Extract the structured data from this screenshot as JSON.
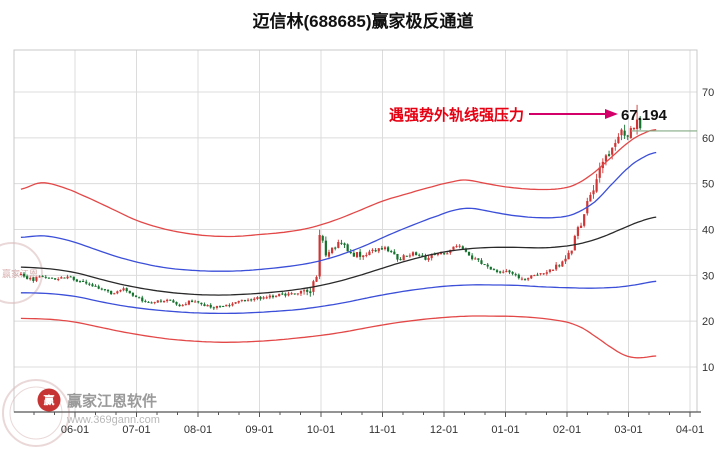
{
  "title": "迈信林(688685)赢家极反通道",
  "annotation": {
    "pressure_text": "遇强势外轨线强压力",
    "price_label": "67.194",
    "text_color": "#e60012",
    "arrow_color": "#d4006a"
  },
  "watermark": {
    "brand": "赢家江恩软件",
    "url": "www.369gann.com",
    "logo_char": "赢",
    "seal_text": "赢家江恩"
  },
  "chart_data": {
    "type": "candlestick",
    "title": "迈信林(688685)赢家极反通道",
    "x_labels": [
      "06-01",
      "07-01",
      "08-01",
      "09-01",
      "10-01",
      "11-01",
      "12-01",
      "01-01",
      "02-01",
      "03-01",
      "04-01"
    ],
    "y_ticks": [
      10,
      20,
      30,
      40,
      50,
      60,
      70
    ],
    "ylim": [
      0,
      79
    ],
    "x_range_months": [
      0.12,
      10.19
    ],
    "grid": true,
    "legend": "none",
    "colors": {
      "grid": "#dcdcdc",
      "border": "#c9c9c9",
      "axis": "#555555"
    },
    "price_line": {
      "value": 61.5,
      "color": "#85ab85"
    },
    "peak": {
      "t": 10.12,
      "high": 67.194
    },
    "candles": {
      "count": 200,
      "seed": 11,
      "up_color": "#cf3535",
      "down_color": "#15722e",
      "close_keyframes": [
        [
          0.12,
          30.2
        ],
        [
          0.3,
          29.0
        ],
        [
          0.5,
          30.1
        ],
        [
          0.7,
          29.0
        ],
        [
          0.9,
          29.9
        ],
        [
          1.1,
          28.5
        ],
        [
          1.35,
          27.3
        ],
        [
          1.6,
          26.2
        ],
        [
          1.8,
          26.9
        ],
        [
          2.0,
          25.1
        ],
        [
          2.2,
          23.8
        ],
        [
          2.45,
          24.7
        ],
        [
          2.7,
          23.5
        ],
        [
          2.9,
          24.4
        ],
        [
          3.1,
          23.3
        ],
        [
          3.35,
          22.9
        ],
        [
          3.6,
          23.9
        ],
        [
          3.8,
          24.7
        ],
        [
          4.0,
          25.1
        ],
        [
          4.3,
          25.7
        ],
        [
          4.6,
          25.9
        ],
        [
          4.85,
          27.0
        ],
        [
          4.93,
          30.5
        ],
        [
          4.99,
          41.0
        ],
        [
          5.06,
          35.0
        ],
        [
          5.2,
          36.2
        ],
        [
          5.35,
          37.0
        ],
        [
          5.5,
          34.8
        ],
        [
          5.7,
          34.1
        ],
        [
          5.9,
          35.6
        ],
        [
          6.05,
          36.1
        ],
        [
          6.25,
          33.6
        ],
        [
          6.5,
          34.7
        ],
        [
          6.7,
          33.8
        ],
        [
          6.9,
          34.6
        ],
        [
          7.05,
          34.9
        ],
        [
          7.25,
          36.8
        ],
        [
          7.45,
          33.9
        ],
        [
          7.65,
          32.3
        ],
        [
          7.85,
          31.1
        ],
        [
          8.05,
          30.5
        ],
        [
          8.3,
          29.2
        ],
        [
          8.55,
          30.3
        ],
        [
          8.8,
          31.7
        ],
        [
          9.0,
          33.6
        ],
        [
          9.12,
          37.5
        ],
        [
          9.25,
          42.5
        ],
        [
          9.38,
          47.5
        ],
        [
          9.5,
          52.0
        ],
        [
          9.62,
          55.5
        ],
        [
          9.72,
          58.0
        ],
        [
          9.82,
          60.5
        ],
        [
          9.9,
          62.5
        ],
        [
          9.96,
          59.5
        ],
        [
          10.02,
          63.0
        ],
        [
          10.07,
          61.0
        ],
        [
          10.12,
          64.5
        ],
        [
          10.16,
          62.5
        ],
        [
          10.19,
          62.0
        ]
      ],
      "volatility_keyframes": [
        [
          0.12,
          0.45
        ],
        [
          4.6,
          0.4
        ],
        [
          4.9,
          1.4
        ],
        [
          5.2,
          0.9
        ],
        [
          6.0,
          0.55
        ],
        [
          8.6,
          0.5
        ],
        [
          9.1,
          1.0
        ],
        [
          9.5,
          1.3
        ],
        [
          10.19,
          1.5
        ]
      ]
    },
    "channel_lines": [
      {
        "name": "outer-upper-red",
        "color": "#e34848",
        "width": 1.3,
        "points": [
          [
            0.12,
            48.8
          ],
          [
            0.45,
            50.2
          ],
          [
            0.8,
            49.2
          ],
          [
            1.2,
            47.0
          ],
          [
            1.6,
            44.5
          ],
          [
            2.0,
            42.0
          ],
          [
            2.4,
            40.3
          ],
          [
            2.8,
            39.2
          ],
          [
            3.2,
            38.6
          ],
          [
            3.6,
            38.5
          ],
          [
            4.0,
            38.9
          ],
          [
            4.4,
            39.4
          ],
          [
            4.8,
            40.3
          ],
          [
            5.2,
            41.9
          ],
          [
            5.6,
            44.0
          ],
          [
            6.0,
            46.2
          ],
          [
            6.4,
            47.8
          ],
          [
            6.8,
            49.3
          ],
          [
            7.1,
            50.3
          ],
          [
            7.35,
            50.8
          ],
          [
            7.7,
            50.0
          ],
          [
            8.0,
            49.3
          ],
          [
            8.4,
            48.8
          ],
          [
            8.8,
            48.8
          ],
          [
            9.1,
            49.6
          ],
          [
            9.4,
            52.0
          ],
          [
            9.7,
            55.5
          ],
          [
            10.0,
            59.0
          ],
          [
            10.25,
            61.0
          ],
          [
            10.45,
            61.8
          ]
        ]
      },
      {
        "name": "inner-upper-blue",
        "color": "#3b4fd8",
        "width": 1.3,
        "points": [
          [
            0.12,
            38.3
          ],
          [
            0.5,
            38.6
          ],
          [
            0.9,
            37.6
          ],
          [
            1.3,
            35.8
          ],
          [
            1.7,
            34.0
          ],
          [
            2.1,
            32.6
          ],
          [
            2.5,
            31.6
          ],
          [
            2.9,
            31.1
          ],
          [
            3.3,
            30.9
          ],
          [
            3.7,
            31.0
          ],
          [
            4.1,
            31.4
          ],
          [
            4.5,
            32.0
          ],
          [
            4.9,
            32.9
          ],
          [
            5.3,
            34.4
          ],
          [
            5.7,
            36.4
          ],
          [
            6.1,
            38.8
          ],
          [
            6.5,
            41.0
          ],
          [
            6.9,
            43.0
          ],
          [
            7.2,
            44.3
          ],
          [
            7.45,
            44.6
          ],
          [
            7.8,
            43.8
          ],
          [
            8.1,
            43.1
          ],
          [
            8.5,
            42.6
          ],
          [
            8.9,
            42.7
          ],
          [
            9.15,
            43.6
          ],
          [
            9.45,
            46.0
          ],
          [
            9.7,
            49.5
          ],
          [
            10.0,
            53.5
          ],
          [
            10.25,
            55.8
          ],
          [
            10.45,
            56.8
          ]
        ]
      },
      {
        "name": "middle-black",
        "color": "#2a2a2a",
        "width": 1.3,
        "points": [
          [
            0.12,
            31.8
          ],
          [
            0.6,
            31.4
          ],
          [
            1.0,
            30.6
          ],
          [
            1.4,
            29.2
          ],
          [
            1.8,
            27.9
          ],
          [
            2.2,
            26.9
          ],
          [
            2.6,
            26.2
          ],
          [
            3.0,
            25.8
          ],
          [
            3.4,
            25.7
          ],
          [
            3.8,
            25.9
          ],
          [
            4.2,
            26.3
          ],
          [
            4.6,
            26.9
          ],
          [
            5.0,
            27.8
          ],
          [
            5.4,
            29.1
          ],
          [
            5.8,
            30.7
          ],
          [
            6.2,
            32.4
          ],
          [
            6.6,
            33.9
          ],
          [
            7.0,
            35.1
          ],
          [
            7.4,
            35.8
          ],
          [
            7.8,
            36.1
          ],
          [
            8.2,
            36.1
          ],
          [
            8.6,
            36.0
          ],
          [
            9.0,
            36.4
          ],
          [
            9.3,
            37.2
          ],
          [
            9.6,
            38.5
          ],
          [
            9.9,
            40.2
          ],
          [
            10.2,
            41.8
          ],
          [
            10.45,
            42.7
          ]
        ]
      },
      {
        "name": "inner-lower-blue",
        "color": "#3b4fd8",
        "width": 1.3,
        "points": [
          [
            0.12,
            26.2
          ],
          [
            0.6,
            26.0
          ],
          [
            1.0,
            25.4
          ],
          [
            1.4,
            24.3
          ],
          [
            1.8,
            23.3
          ],
          [
            2.2,
            22.6
          ],
          [
            2.6,
            22.1
          ],
          [
            3.0,
            21.8
          ],
          [
            3.4,
            21.7
          ],
          [
            3.8,
            21.8
          ],
          [
            4.2,
            22.1
          ],
          [
            4.6,
            22.5
          ],
          [
            5.0,
            23.2
          ],
          [
            5.4,
            24.1
          ],
          [
            5.8,
            25.2
          ],
          [
            6.2,
            26.2
          ],
          [
            6.6,
            27.0
          ],
          [
            7.0,
            27.6
          ],
          [
            7.4,
            27.9
          ],
          [
            7.8,
            27.9
          ],
          [
            8.2,
            27.8
          ],
          [
            8.6,
            27.5
          ],
          [
            9.0,
            27.3
          ],
          [
            9.4,
            27.2
          ],
          [
            9.8,
            27.4
          ],
          [
            10.1,
            27.9
          ],
          [
            10.45,
            28.7
          ]
        ]
      },
      {
        "name": "outer-lower-red",
        "color": "#e34848",
        "width": 1.3,
        "points": [
          [
            0.12,
            20.6
          ],
          [
            0.6,
            20.4
          ],
          [
            1.0,
            19.8
          ],
          [
            1.4,
            18.7
          ],
          [
            1.8,
            17.6
          ],
          [
            2.2,
            16.7
          ],
          [
            2.6,
            16.0
          ],
          [
            3.0,
            15.6
          ],
          [
            3.4,
            15.4
          ],
          [
            3.8,
            15.5
          ],
          [
            4.2,
            15.8
          ],
          [
            4.6,
            16.3
          ],
          [
            5.0,
            16.9
          ],
          [
            5.4,
            17.7
          ],
          [
            5.8,
            18.7
          ],
          [
            6.2,
            19.6
          ],
          [
            6.6,
            20.3
          ],
          [
            7.0,
            20.8
          ],
          [
            7.4,
            21.1
          ],
          [
            7.8,
            21.1
          ],
          [
            8.2,
            21.0
          ],
          [
            8.6,
            20.6
          ],
          [
            9.0,
            19.8
          ],
          [
            9.25,
            18.5
          ],
          [
            9.5,
            16.3
          ],
          [
            9.75,
            14.0
          ],
          [
            9.95,
            12.5
          ],
          [
            10.15,
            12.0
          ],
          [
            10.45,
            12.4
          ]
        ]
      }
    ]
  }
}
